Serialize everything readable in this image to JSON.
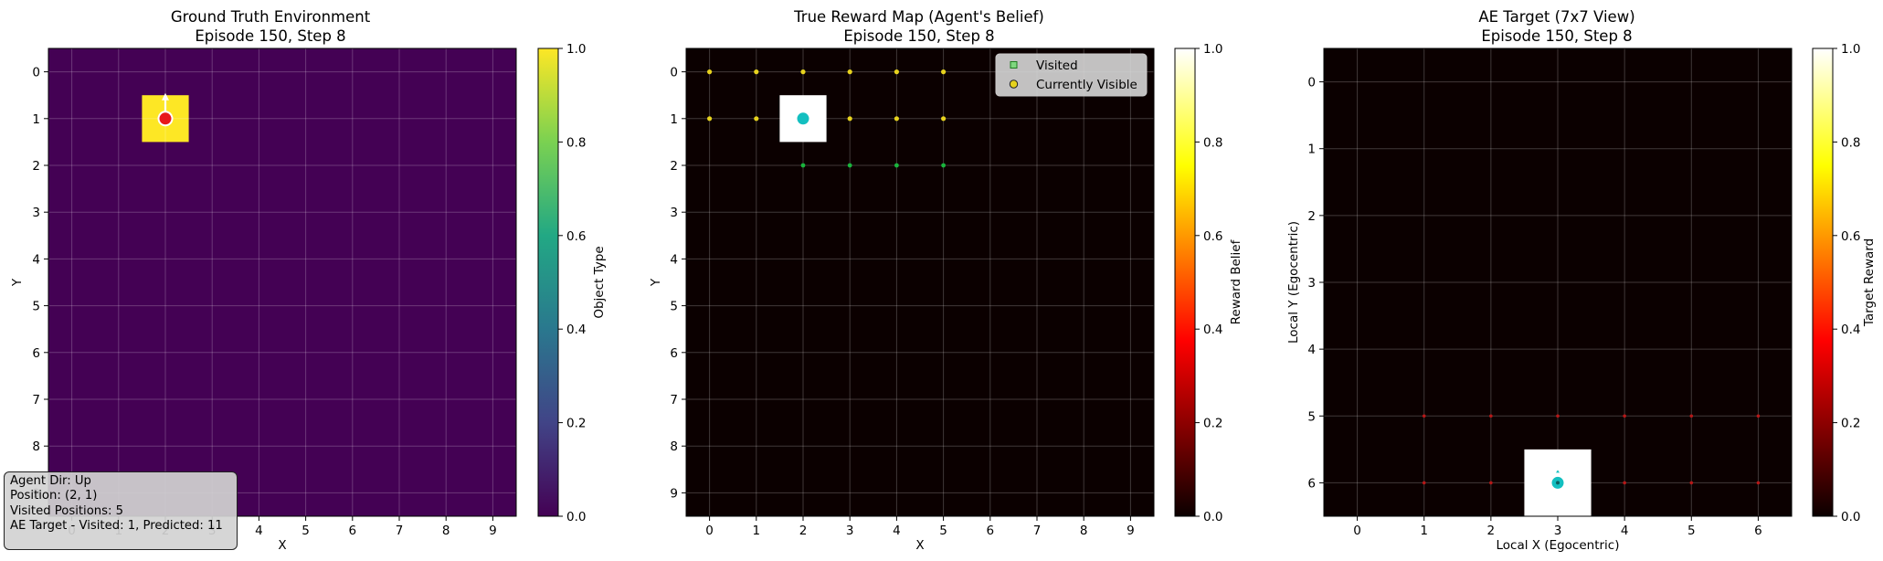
{
  "chart_data": [
    {
      "type": "heatmap",
      "title": "Ground Truth Environment",
      "subtitle": "Episode 150, Step 8",
      "xlabel": "X",
      "ylabel": "Y",
      "x_ticks": [
        "0",
        "1",
        "2",
        "3",
        "4",
        "5",
        "6",
        "7",
        "8",
        "9"
      ],
      "y_ticks": [
        "0",
        "1",
        "2",
        "3",
        "4",
        "5",
        "6",
        "7",
        "8",
        "9"
      ],
      "grid": true,
      "colormap": "viridis",
      "colorbar": {
        "label": "Object Type",
        "range": [
          0,
          1
        ],
        "ticks": [
          "0.0",
          "0.2",
          "0.4",
          "0.6",
          "0.8",
          "1.0"
        ]
      },
      "cells": [
        {
          "x": 2,
          "y": 1,
          "value": 1.0
        }
      ],
      "agent": {
        "x": 2,
        "y": 1,
        "direction": "Up"
      }
    },
    {
      "type": "heatmap",
      "title": "True Reward Map (Agent's Belief)",
      "subtitle": "Episode 150, Step 8",
      "xlabel": "X",
      "ylabel": "Y",
      "x_ticks": [
        "0",
        "1",
        "2",
        "3",
        "4",
        "5",
        "6",
        "7",
        "8",
        "9"
      ],
      "y_ticks": [
        "0",
        "1",
        "2",
        "3",
        "4",
        "5",
        "6",
        "7",
        "8",
        "9"
      ],
      "grid": true,
      "colormap": "hot",
      "colorbar": {
        "label": "Reward Belief",
        "range": [
          0,
          1
        ],
        "ticks": [
          "0.0",
          "0.2",
          "0.4",
          "0.6",
          "0.8",
          "1.0"
        ]
      },
      "cells": [
        {
          "x": 2,
          "y": 1,
          "value": 1.0
        }
      ],
      "agent": {
        "x": 2,
        "y": 1
      },
      "legend": {
        "position": "upper-right",
        "entries": [
          "Visited",
          "Currently Visible"
        ]
      },
      "visible_points": [
        [
          0,
          0
        ],
        [
          1,
          0
        ],
        [
          2,
          0
        ],
        [
          3,
          0
        ],
        [
          4,
          0
        ],
        [
          5,
          0
        ],
        [
          0,
          1
        ],
        [
          1,
          1
        ],
        [
          3,
          1
        ],
        [
          4,
          1
        ],
        [
          5,
          1
        ]
      ],
      "visited_points": [
        [
          2,
          2
        ],
        [
          3,
          2
        ],
        [
          4,
          2
        ],
        [
          5,
          2
        ]
      ]
    },
    {
      "type": "heatmap",
      "title": "AE Target (7x7 View)",
      "subtitle": "Episode 150, Step 8",
      "xlabel": "Local X (Egocentric)",
      "ylabel": "Local Y (Egocentric)",
      "x_ticks": [
        "0",
        "1",
        "2",
        "3",
        "4",
        "5",
        "6"
      ],
      "y_ticks": [
        "0",
        "1",
        "2",
        "3",
        "4",
        "5",
        "6"
      ],
      "grid": true,
      "colormap": "hot",
      "colorbar": {
        "label": "Target Reward",
        "range": [
          0,
          1
        ],
        "ticks": [
          "0.0",
          "0.2",
          "0.4",
          "0.6",
          "0.8",
          "1.0"
        ]
      },
      "cells": [
        {
          "x": 3,
          "y": 6,
          "value": 1.0
        }
      ],
      "agent": {
        "x": 3,
        "y": 6
      },
      "marker_points": [
        [
          1,
          5
        ],
        [
          2,
          5
        ],
        [
          3,
          5
        ],
        [
          4,
          5
        ],
        [
          5,
          5
        ],
        [
          6,
          5
        ],
        [
          1,
          6
        ],
        [
          2,
          6
        ],
        [
          4,
          6
        ],
        [
          5,
          6
        ],
        [
          6,
          6
        ]
      ]
    }
  ],
  "info_box": {
    "lines": [
      "Agent Dir: Up",
      "Position: (2, 1)",
      "Visited Positions: 5",
      "AE Target - Visited: 1, Predicted: 11"
    ]
  },
  "colors": {
    "viridis_low": "#440154",
    "viridis_high": "#fde725",
    "hot_low": "#0b0000",
    "agent_red": "#e8191c",
    "agent_cyan": "#13bfc0",
    "visible_yellow": "#e6d21e",
    "visited_green": "#19b43c",
    "marker_red": "#b51818"
  }
}
